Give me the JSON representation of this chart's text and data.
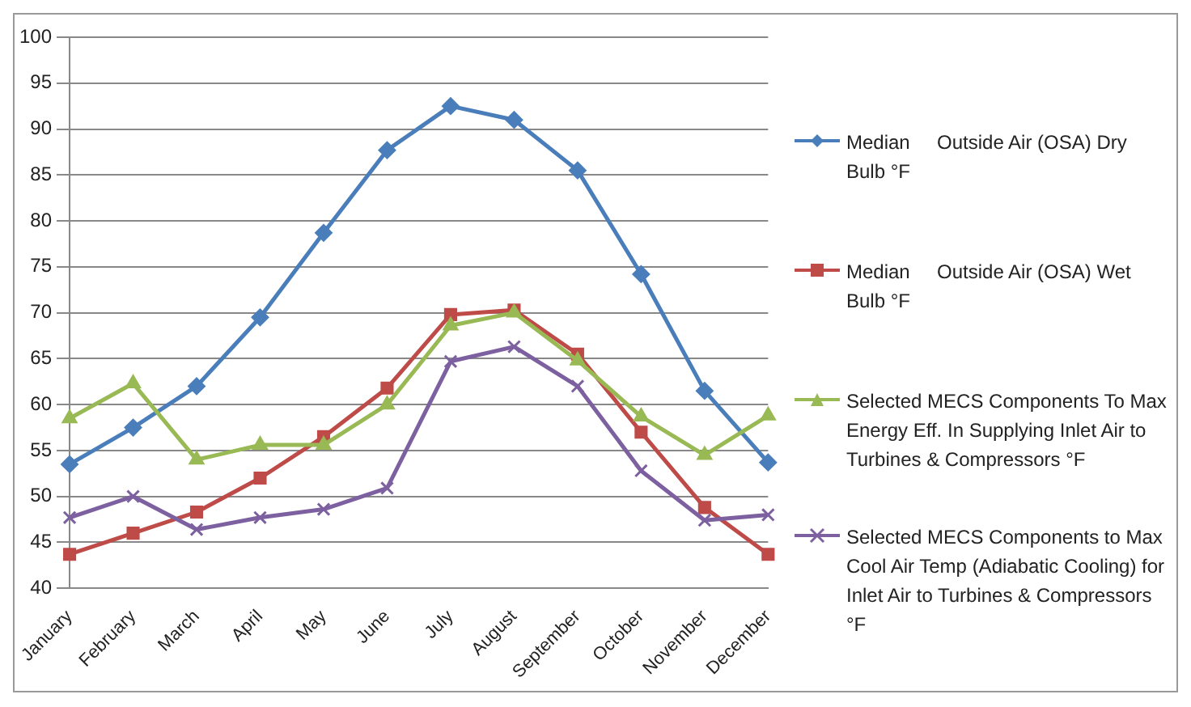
{
  "chart_data": {
    "type": "line",
    "categories": [
      "January",
      "February",
      "March",
      "April",
      "May",
      "June",
      "July",
      "August",
      "September",
      "October",
      "November",
      "December"
    ],
    "series": [
      {
        "name": "Median     Outside Air (OSA) Dry Bulb °F",
        "color": "#4a7ebb",
        "marker": "diamond",
        "values": [
          53.5,
          57.5,
          62,
          69.5,
          78.7,
          87.7,
          92.5,
          91,
          85.5,
          74.2,
          61.5,
          53.7
        ]
      },
      {
        "name": "Median     Outside Air (OSA) Wet Bulb °F",
        "color": "#be4b48",
        "marker": "square",
        "values": [
          43.7,
          46,
          48.3,
          52,
          56.5,
          61.8,
          69.8,
          70.3,
          65.5,
          57,
          48.8,
          43.7
        ]
      },
      {
        "name": "Selected MECS Components To Max Energy Eff. In Supplying Inlet Air to Turbines & Compressors °F",
        "color": "#98b954",
        "marker": "triangle",
        "values": [
          58.5,
          62.3,
          54,
          55.6,
          55.6,
          60,
          68.6,
          70,
          64.8,
          58.7,
          54.5,
          58.8
        ]
      },
      {
        "name": "Selected MECS Components to Max Cool Air Temp (Adiabatic Cooling) for Inlet Air to Turbines & Compressors °F",
        "color": "#7d60a0",
        "marker": "cross",
        "values": [
          47.7,
          50,
          46.4,
          47.7,
          48.6,
          50.9,
          64.7,
          66.3,
          62,
          52.8,
          47.4,
          48
        ]
      }
    ],
    "ylim": [
      40,
      100
    ],
    "yticks": [
      40,
      45,
      50,
      55,
      60,
      65,
      70,
      75,
      80,
      85,
      90,
      95,
      100
    ],
    "grid": "y",
    "legend": "right"
  }
}
